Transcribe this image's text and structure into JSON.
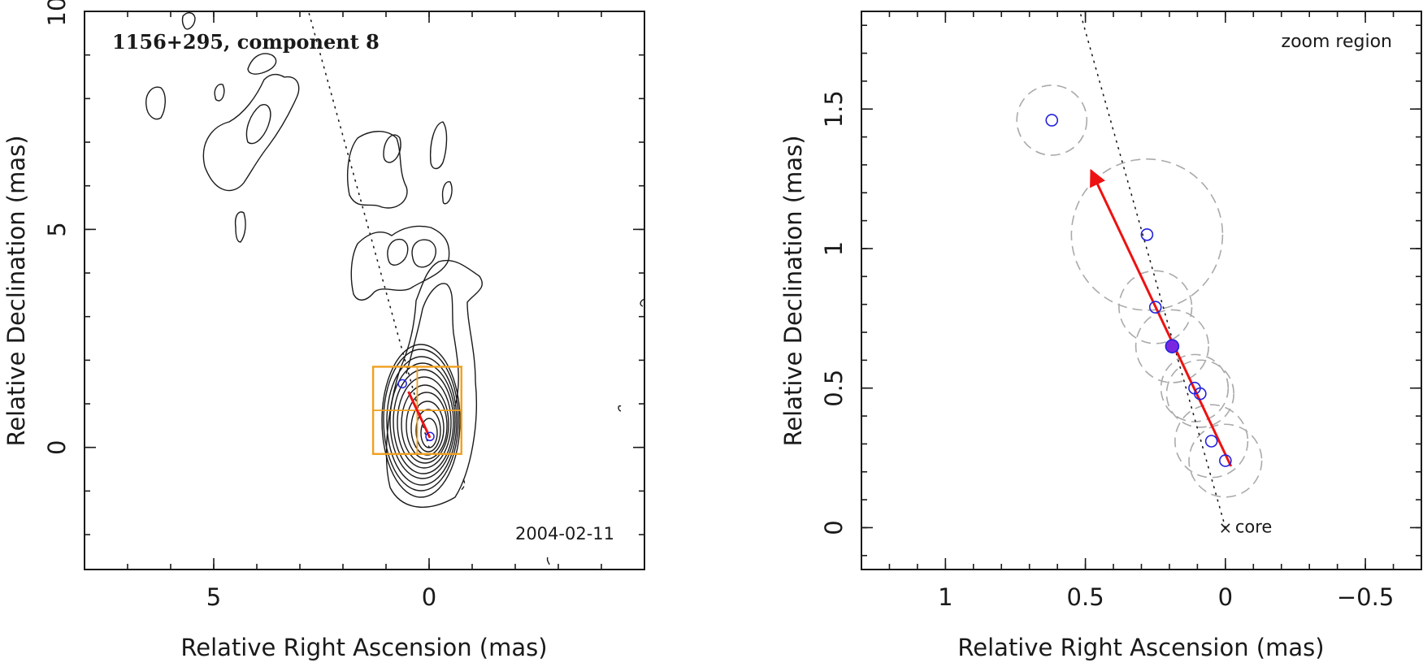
{
  "chart_data": [
    {
      "type": "scatter",
      "panel": "left",
      "title": "1156+295, component 8",
      "date": "2004-02-11",
      "xlabel": "Relative Right Ascension (mas)",
      "ylabel": "Relative Declination (mas)",
      "xlim": [
        8.0,
        -5.0
      ],
      "ylim": [
        -2.8,
        10.0
      ],
      "xticks": [
        5,
        0
      ],
      "yticks": [
        0,
        5,
        10
      ],
      "x_tick_labels": [
        "5",
        "0"
      ],
      "y_tick_labels": [
        "0",
        "5",
        "10"
      ],
      "components": [
        {
          "x": 0.62,
          "y": 1.46
        },
        {
          "x": -0.02,
          "y": 0.25
        }
      ],
      "zoom_box": {
        "x_range": [
          1.3,
          -0.75
        ],
        "y_range": [
          -0.15,
          1.85
        ]
      },
      "motion_arrow": {
        "from": [
          -0.02,
          0.22
        ],
        "to": [
          0.48,
          1.28
        ]
      },
      "jet_axis_line": {
        "from": [
          0.0,
          0.0
        ],
        "to": [
          2.8,
          10.0
        ]
      }
    },
    {
      "type": "scatter",
      "panel": "right",
      "label": "zoom region",
      "core_label": "core",
      "xlabel": "Relative Right Ascension (mas)",
      "ylabel": "Relative Declination (mas)",
      "xlim": [
        1.3,
        -0.7
      ],
      "ylim": [
        -0.15,
        1.85
      ],
      "xticks": [
        1,
        0.5,
        0,
        -0.5
      ],
      "yticks": [
        0,
        0.5,
        1,
        1.5
      ],
      "x_tick_labels": [
        "1",
        "0.5",
        "0",
        "−0.5"
      ],
      "y_tick_labels": [
        "0",
        "0.5",
        "1",
        "1.5"
      ],
      "positions": [
        {
          "x": 0.62,
          "y": 1.46,
          "radius": 0.125,
          "filled": false
        },
        {
          "x": 0.28,
          "y": 1.05,
          "radius": 0.27,
          "filled": false
        },
        {
          "x": 0.25,
          "y": 0.79,
          "radius": 0.13,
          "filled": false
        },
        {
          "x": 0.19,
          "y": 0.65,
          "radius": 0.13,
          "filled": true
        },
        {
          "x": 0.11,
          "y": 0.5,
          "radius": 0.12,
          "filled": false
        },
        {
          "x": 0.09,
          "y": 0.48,
          "radius": 0.12,
          "filled": false
        },
        {
          "x": 0.05,
          "y": 0.31,
          "radius": 0.13,
          "filled": false
        },
        {
          "x": 0.0,
          "y": 0.24,
          "radius": 0.13,
          "filled": false
        }
      ],
      "core": {
        "x": 0.0,
        "y": 0.0
      },
      "motion_arrow": {
        "from": [
          -0.02,
          0.22
        ],
        "to": [
          0.48,
          1.28
        ]
      },
      "jet_axis_line": {
        "from": [
          0.0,
          0.0
        ],
        "to": [
          0.52,
          1.85
        ]
      }
    }
  ],
  "colors": {
    "arrow": "#ee1111",
    "component": "#2222dd",
    "box": "#f0a020",
    "uncertainty": "#aaaaaa",
    "ink": "#1a1a1a"
  }
}
